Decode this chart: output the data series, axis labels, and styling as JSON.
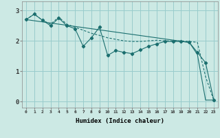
{
  "xlabel": "Humidex (Indice chaleur)",
  "bg_color": "#cce9e4",
  "grid_color": "#99cccc",
  "line_color": "#1a6e6e",
  "x_ticks": [
    0,
    1,
    2,
    3,
    4,
    5,
    6,
    7,
    8,
    9,
    10,
    11,
    12,
    13,
    14,
    15,
    16,
    17,
    18,
    19,
    20,
    21,
    22,
    23
  ],
  "y_ticks": [
    0,
    1,
    2,
    3
  ],
  "ylim": [
    -0.2,
    3.3
  ],
  "xlim": [
    -0.5,
    23.5
  ],
  "line1_x": [
    0,
    1,
    2,
    3,
    4,
    5,
    6,
    7,
    8,
    9,
    10,
    11,
    12,
    13,
    14,
    15,
    16,
    17,
    18,
    19,
    20,
    21,
    22,
    23
  ],
  "line1_y": [
    2.7,
    2.88,
    2.68,
    2.5,
    2.75,
    2.5,
    2.4,
    1.82,
    2.1,
    2.45,
    1.52,
    1.68,
    1.62,
    1.58,
    1.7,
    1.82,
    1.9,
    1.98,
    1.98,
    1.98,
    1.95,
    1.62,
    1.28,
    0.05
  ],
  "line2_x": [
    0,
    1,
    2,
    3,
    4,
    5,
    6,
    7,
    8,
    9,
    10,
    11,
    12,
    13,
    14,
    15,
    16,
    17,
    18,
    19,
    20,
    21,
    22,
    23
  ],
  "line2_y": [
    2.7,
    2.88,
    2.68,
    2.55,
    2.78,
    2.55,
    2.45,
    2.35,
    2.25,
    2.18,
    2.1,
    2.05,
    2.0,
    1.98,
    1.98,
    2.0,
    2.02,
    2.0,
    2.0,
    2.0,
    1.98,
    1.95,
    0.82,
    0.05
  ],
  "line3_x": [
    0,
    20,
    21,
    22,
    23
  ],
  "line3_y": [
    2.7,
    1.95,
    1.55,
    0.05,
    0.05
  ]
}
